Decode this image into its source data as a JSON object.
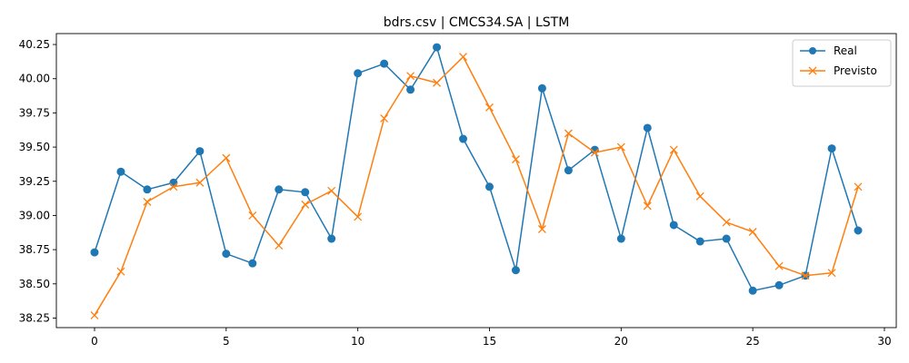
{
  "chart_data": {
    "type": "line",
    "title": "bdrs.csv | CMCS34.SA | LSTM",
    "xlabel": "",
    "ylabel": "",
    "x": [
      0,
      1,
      2,
      3,
      4,
      5,
      6,
      7,
      8,
      9,
      10,
      11,
      12,
      13,
      14,
      15,
      16,
      17,
      18,
      19,
      20,
      21,
      22,
      23,
      24,
      25,
      26,
      27,
      28,
      29
    ],
    "xlim": [
      -1.45,
      30.45
    ],
    "ylim": [
      38.18,
      40.33
    ],
    "xticks": [
      0,
      5,
      10,
      15,
      20,
      25,
      30
    ],
    "xtick_labels": [
      "0",
      "5",
      "10",
      "15",
      "20",
      "25",
      "30"
    ],
    "yticks": [
      38.25,
      38.5,
      38.75,
      39.0,
      39.25,
      39.5,
      39.75,
      40.0,
      40.25
    ],
    "ytick_labels": [
      "38.25",
      "38.50",
      "38.75",
      "39.00",
      "39.25",
      "39.50",
      "39.75",
      "40.00",
      "40.25"
    ],
    "grid": false,
    "legend": "top-right",
    "series": [
      {
        "name": "Real",
        "color": "#1f77b4",
        "marker": "circle",
        "values": [
          38.73,
          39.32,
          39.19,
          39.24,
          39.47,
          38.72,
          38.65,
          39.19,
          39.17,
          38.83,
          40.04,
          40.11,
          39.92,
          40.23,
          39.56,
          39.21,
          38.6,
          39.93,
          39.33,
          39.48,
          38.83,
          39.64,
          38.93,
          38.81,
          38.83,
          38.45,
          38.49,
          38.56,
          39.49,
          38.89
        ]
      },
      {
        "name": "Previsto",
        "color": "#ff7f0e",
        "marker": "x",
        "values": [
          38.27,
          38.59,
          39.1,
          39.21,
          39.24,
          39.42,
          39.0,
          38.78,
          39.08,
          39.18,
          38.99,
          39.71,
          40.02,
          39.97,
          40.16,
          39.79,
          39.41,
          38.9,
          39.6,
          39.46,
          39.5,
          39.07,
          39.48,
          39.14,
          38.95,
          38.88,
          38.63,
          38.56,
          38.58,
          39.21
        ]
      }
    ]
  }
}
